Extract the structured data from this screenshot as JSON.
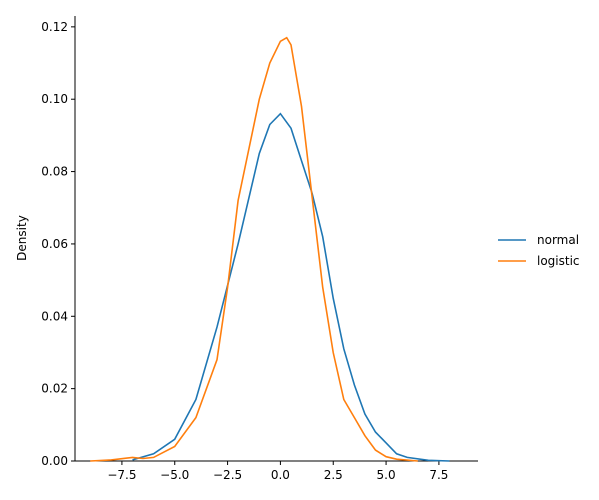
{
  "chart_data": {
    "type": "line",
    "y_label": "Density",
    "xlim": [
      -9.72,
      9.35
    ],
    "ylim": [
      0,
      0.123
    ],
    "xticks": [
      {
        "value": -7.5,
        "label": "−7.5"
      },
      {
        "value": -5,
        "label": "−5.0"
      },
      {
        "value": -2.5,
        "label": "−2.5"
      },
      {
        "value": 0,
        "label": "0.0"
      },
      {
        "value": 2.5,
        "label": "2.5"
      },
      {
        "value": 5,
        "label": "5.0"
      },
      {
        "value": 7.5,
        "label": "7.5"
      }
    ],
    "yticks": [
      {
        "value": 0,
        "label": "0.00"
      },
      {
        "value": 0.02,
        "label": "0.02"
      },
      {
        "value": 0.04,
        "label": "0.04"
      },
      {
        "value": 0.06,
        "label": "0.06"
      },
      {
        "value": 0.08,
        "label": "0.08"
      },
      {
        "value": 0.1,
        "label": "0.10"
      },
      {
        "value": 0.12,
        "label": "0.12"
      }
    ],
    "grid": false,
    "legend": "right",
    "series": [
      {
        "name": "normal",
        "color": "#1f77b4",
        "x": [
          -7,
          -6,
          -5,
          -4,
          -3,
          -2,
          -1,
          -0.5,
          0,
          0.5,
          1,
          1.5,
          2,
          2.5,
          3,
          3.5,
          4,
          4.5,
          5,
          5.5,
          6,
          7,
          8
        ],
        "values": [
          0.0003,
          0.002,
          0.006,
          0.017,
          0.037,
          0.06,
          0.085,
          0.093,
          0.096,
          0.092,
          0.083,
          0.074,
          0.062,
          0.045,
          0.031,
          0.021,
          0.013,
          0.008,
          0.005,
          0.002,
          0.001,
          0.0002,
          0
        ]
      },
      {
        "name": "logistic",
        "color": "#ff7f0e",
        "x": [
          -9,
          -8,
          -7,
          -6.5,
          -6,
          -5,
          -4,
          -3,
          -2.5,
          -2,
          -1,
          -0.5,
          0,
          0.3,
          0.5,
          1,
          1.5,
          2,
          2.5,
          3,
          3.5,
          4,
          4.5,
          5,
          5.5,
          6.5
        ],
        "values": [
          0,
          0.0003,
          0.001,
          0.0007,
          0.001,
          0.004,
          0.012,
          0.028,
          0.048,
          0.072,
          0.1,
          0.11,
          0.116,
          0.117,
          0.115,
          0.098,
          0.073,
          0.048,
          0.03,
          0.017,
          0.012,
          0.007,
          0.003,
          0.0012,
          0.0005,
          0
        ]
      }
    ]
  }
}
